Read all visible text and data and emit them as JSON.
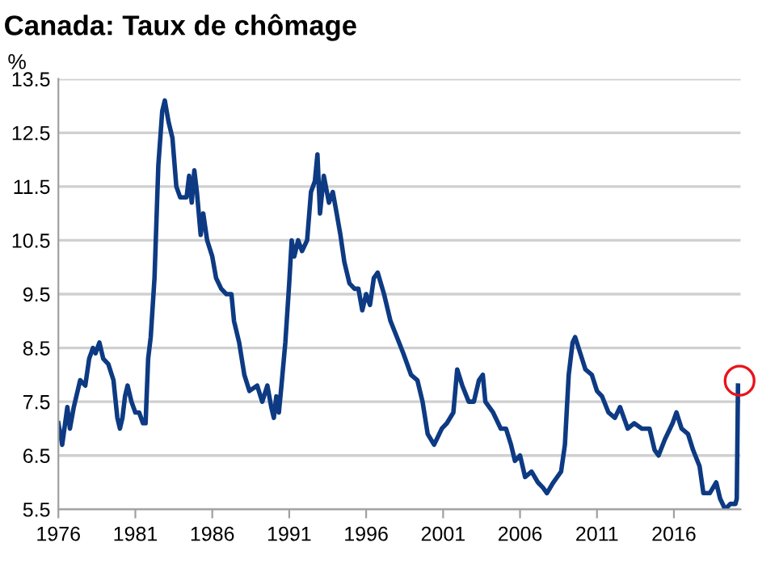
{
  "chart_data": {
    "type": "line",
    "title": "Canada: Taux de chômage",
    "ylabel": "%",
    "x": [
      "1976-01",
      "1976-04",
      "1976-08",
      "1976-10",
      "1977-01",
      "1977-06",
      "1977-10",
      "1978-01",
      "1978-04",
      "1978-06",
      "1978-09",
      "1978-12",
      "1979-04",
      "1979-08",
      "1979-11",
      "1980-01",
      "1980-03",
      "1980-05",
      "1980-07",
      "1980-10",
      "1981-01",
      "1981-04",
      "1981-07",
      "1981-09",
      "1981-11",
      "1982-01",
      "1982-04",
      "1982-07",
      "1982-10",
      "1982-12",
      "1983-03",
      "1983-06",
      "1983-09",
      "1983-12",
      "1984-05",
      "1984-07",
      "1984-09",
      "1984-11",
      "1985-01",
      "1985-04",
      "1985-06",
      "1985-09",
      "1986-01",
      "1986-04",
      "1986-08",
      "1986-12",
      "1987-04",
      "1987-06",
      "1987-10",
      "1988-02",
      "1988-06",
      "1988-12",
      "1989-04",
      "1989-08",
      "1989-11",
      "1990-01",
      "1990-03",
      "1990-05",
      "1990-07",
      "1990-10",
      "1991-01",
      "1991-03",
      "1991-05",
      "1991-08",
      "1991-11",
      "1992-03",
      "1992-06",
      "1992-09",
      "1992-11",
      "1993-01",
      "1993-04",
      "1993-08",
      "1993-11",
      "1994-02",
      "1994-05",
      "1994-08",
      "1994-12",
      "1995-04",
      "1995-07",
      "1995-10",
      "1996-01",
      "1996-04",
      "1996-07",
      "1996-10",
      "1997-03",
      "1997-08",
      "1998-01",
      "1998-06",
      "1998-09",
      "1998-12",
      "1999-05",
      "1999-09",
      "2000-01",
      "2000-06",
      "2000-12",
      "2001-04",
      "2001-09",
      "2001-12",
      "2002-04",
      "2002-09",
      "2003-01",
      "2003-05",
      "2003-08",
      "2003-10",
      "2004-04",
      "2004-10",
      "2005-02",
      "2005-06",
      "2005-09",
      "2006-01",
      "2006-05",
      "2006-10",
      "2007-03",
      "2007-07",
      "2007-10",
      "2008-03",
      "2008-09",
      "2008-12",
      "2009-03",
      "2009-06",
      "2009-08",
      "2009-12",
      "2010-04",
      "2010-09",
      "2011-01",
      "2011-05",
      "2011-10",
      "2012-03",
      "2012-07",
      "2013-01",
      "2013-06",
      "2013-12",
      "2014-06",
      "2014-10",
      "2015-01",
      "2015-06",
      "2015-12",
      "2016-03",
      "2016-07",
      "2016-12",
      "2017-04",
      "2017-09",
      "2017-12",
      "2018-05",
      "2018-10",
      "2019-01",
      "2019-05",
      "2019-09",
      "2019-12",
      "2020-01",
      "2020-02",
      "2020-03"
    ],
    "series": [
      {
        "color": "#0d3a83",
        "values": [
          7.1,
          6.7,
          7.4,
          7.0,
          7.4,
          7.9,
          7.8,
          8.3,
          8.5,
          8.4,
          8.6,
          8.3,
          8.2,
          7.9,
          7.2,
          7.0,
          7.2,
          7.6,
          7.8,
          7.5,
          7.3,
          7.3,
          7.1,
          7.1,
          8.3,
          8.7,
          9.8,
          11.9,
          12.9,
          13.1,
          12.7,
          12.4,
          11.5,
          11.3,
          11.3,
          11.7,
          11.2,
          11.8,
          11.4,
          10.6,
          11.0,
          10.5,
          10.2,
          9.8,
          9.6,
          9.5,
          9.5,
          9.0,
          8.6,
          8.0,
          7.7,
          7.8,
          7.5,
          7.8,
          7.4,
          7.2,
          7.6,
          7.3,
          7.8,
          8.6,
          9.7,
          10.5,
          10.2,
          10.5,
          10.3,
          10.5,
          11.4,
          11.6,
          12.1,
          11.0,
          11.7,
          11.2,
          11.4,
          11.0,
          10.6,
          10.1,
          9.7,
          9.6,
          9.6,
          9.2,
          9.5,
          9.3,
          9.8,
          9.9,
          9.5,
          9.0,
          8.7,
          8.4,
          8.2,
          8.0,
          7.9,
          7.5,
          6.9,
          6.7,
          7.0,
          7.1,
          7.3,
          8.1,
          7.8,
          7.5,
          7.5,
          7.9,
          8.0,
          7.5,
          7.3,
          7.0,
          7.0,
          6.7,
          6.4,
          6.5,
          6.1,
          6.2,
          6.0,
          5.9,
          5.8,
          6.0,
          6.2,
          6.7,
          8.0,
          8.6,
          8.7,
          8.4,
          8.1,
          8.0,
          7.7,
          7.6,
          7.3,
          7.2,
          7.4,
          7.0,
          7.1,
          7.0,
          7.0,
          6.6,
          6.5,
          6.8,
          7.1,
          7.3,
          7.0,
          6.9,
          6.6,
          6.3,
          5.8,
          5.8,
          6.0,
          5.7,
          5.5,
          5.6,
          5.6,
          5.6,
          5.7,
          7.8
        ]
      }
    ],
    "xlim": [
      "1976-01",
      "2020-05"
    ],
    "xticks": [
      "1976",
      "1981",
      "1986",
      "1991",
      "1996",
      "2001",
      "2006",
      "2011",
      "2016"
    ],
    "ylim": [
      5.5,
      13.5
    ],
    "yticks": [
      5.5,
      6.5,
      7.5,
      8.5,
      9.5,
      10.5,
      11.5,
      12.5,
      13.5
    ],
    "grid": "y",
    "line_style": "solid",
    "marker": "none"
  }
}
